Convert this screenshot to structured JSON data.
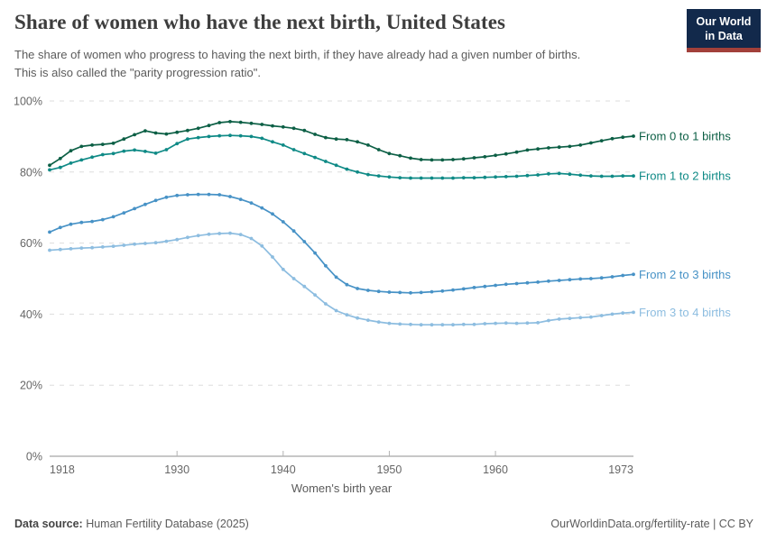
{
  "header": {
    "title": "Share of women who have the next birth, United States",
    "subtitle_line1": "The share of women who progress to having the next birth, if they have already had a given number of births.",
    "subtitle_line2": "This is also called the \"parity progression ratio\".",
    "logo": {
      "line1": "Our World",
      "line2": "in Data",
      "bg": "#12294b",
      "accent": "#a2403a"
    }
  },
  "footer": {
    "source_label": "Data source:",
    "source_value": " Human Fertility Database (2025)",
    "right_text": "OurWorldinData.org/fertility-rate | CC BY"
  },
  "chart_data": {
    "type": "line",
    "title": "Share of women who have the next birth, United States",
    "xlabel": "Women's birth year",
    "ylabel": "",
    "xlim": [
      1918,
      1973
    ],
    "ylim": [
      0,
      100
    ],
    "grid": "dashed-horizontal",
    "legend_position": "right-of-line-ends",
    "y_ticks": [
      0,
      20,
      40,
      60,
      80,
      100
    ],
    "y_tick_labels": [
      "0%",
      "20%",
      "40%",
      "60%",
      "80%",
      "100%"
    ],
    "x_ticks": [
      1918,
      1930,
      1940,
      1950,
      1960,
      1973
    ],
    "x_tick_labels": [
      "1918",
      "1930",
      "1940",
      "1950",
      "1960",
      "1973"
    ],
    "x": [
      1918,
      1919,
      1920,
      1921,
      1922,
      1923,
      1924,
      1925,
      1926,
      1927,
      1928,
      1929,
      1930,
      1931,
      1932,
      1933,
      1934,
      1935,
      1936,
      1937,
      1938,
      1939,
      1940,
      1941,
      1942,
      1943,
      1944,
      1945,
      1946,
      1947,
      1948,
      1949,
      1950,
      1951,
      1952,
      1953,
      1954,
      1955,
      1956,
      1957,
      1958,
      1959,
      1960,
      1961,
      1962,
      1963,
      1964,
      1965,
      1966,
      1967,
      1968,
      1969,
      1970,
      1971,
      1972,
      1973
    ],
    "series": [
      {
        "name": "From 0 to 1 births",
        "color": "#0c5f45",
        "values": [
          81.9,
          83.8,
          86.0,
          87.2,
          87.6,
          87.8,
          88.1,
          89.3,
          90.5,
          91.6,
          91.0,
          90.7,
          91.2,
          91.7,
          92.3,
          93.1,
          93.9,
          94.2,
          94.0,
          93.7,
          93.4,
          93.0,
          92.7,
          92.3,
          91.7,
          90.6,
          89.7,
          89.3,
          89.1,
          88.5,
          87.6,
          86.3,
          85.2,
          84.6,
          83.9,
          83.5,
          83.4,
          83.4,
          83.5,
          83.7,
          84.0,
          84.3,
          84.7,
          85.1,
          85.6,
          86.2,
          86.5,
          86.8,
          87.0,
          87.2,
          87.6,
          88.2,
          88.8,
          89.4,
          89.8,
          90.1
        ]
      },
      {
        "name": "From 1 to 2 births",
        "color": "#0f8a86",
        "values": [
          80.6,
          81.3,
          82.5,
          83.4,
          84.2,
          84.9,
          85.2,
          85.9,
          86.2,
          85.8,
          85.3,
          86.3,
          88.0,
          89.3,
          89.7,
          90.0,
          90.2,
          90.3,
          90.2,
          90.0,
          89.5,
          88.5,
          87.6,
          86.3,
          85.2,
          84.1,
          83.0,
          81.9,
          80.8,
          80.0,
          79.3,
          78.9,
          78.6,
          78.4,
          78.3,
          78.3,
          78.3,
          78.3,
          78.3,
          78.4,
          78.4,
          78.5,
          78.6,
          78.7,
          78.8,
          79.0,
          79.2,
          79.5,
          79.6,
          79.4,
          79.1,
          78.9,
          78.8,
          78.8,
          78.9,
          78.9
        ]
      },
      {
        "name": "From 2 to 3 births",
        "color": "#4792c6",
        "values": [
          63.1,
          64.4,
          65.3,
          65.8,
          66.1,
          66.6,
          67.4,
          68.5,
          69.7,
          70.9,
          72.0,
          72.9,
          73.4,
          73.6,
          73.7,
          73.7,
          73.6,
          73.1,
          72.3,
          71.3,
          69.9,
          68.2,
          66.0,
          63.4,
          60.4,
          57.2,
          53.6,
          50.4,
          48.3,
          47.2,
          46.7,
          46.4,
          46.2,
          46.1,
          46.0,
          46.1,
          46.3,
          46.5,
          46.8,
          47.1,
          47.5,
          47.8,
          48.1,
          48.4,
          48.6,
          48.8,
          49.0,
          49.3,
          49.5,
          49.7,
          49.9,
          50.0,
          50.2,
          50.5,
          50.9,
          51.2
        ]
      },
      {
        "name": "From 3 to 4 births",
        "color": "#8dbde0",
        "values": [
          58.0,
          58.2,
          58.4,
          58.6,
          58.7,
          58.9,
          59.1,
          59.4,
          59.7,
          59.9,
          60.1,
          60.5,
          61.0,
          61.6,
          62.1,
          62.5,
          62.7,
          62.8,
          62.4,
          61.3,
          59.2,
          56.1,
          52.6,
          50.0,
          47.8,
          45.4,
          42.9,
          41.0,
          39.8,
          38.9,
          38.3,
          37.8,
          37.4,
          37.2,
          37.1,
          37.0,
          37.0,
          37.0,
          37.0,
          37.1,
          37.1,
          37.3,
          37.4,
          37.5,
          37.4,
          37.5,
          37.6,
          38.2,
          38.6,
          38.8,
          39.0,
          39.2,
          39.6,
          40.0,
          40.3,
          40.5
        ]
      }
    ]
  }
}
